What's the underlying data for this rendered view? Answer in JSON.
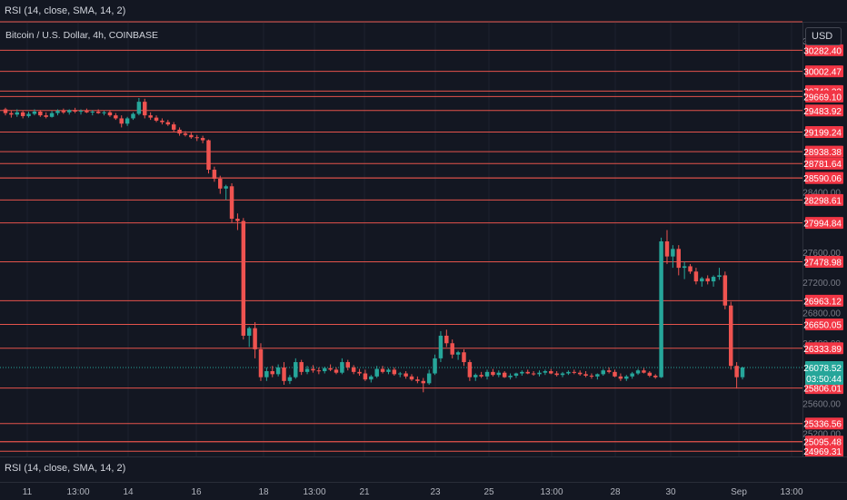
{
  "indicator_top": "RSI (14, close, SMA, 14, 2)",
  "indicator_bottom": "RSI (14, close, SMA, 14, 2)",
  "symbol_title": "Bitcoin / U.S. Dollar, 4h, COINBASE",
  "currency_button": "USD",
  "colors": {
    "background": "#131722",
    "up": "#26a69a",
    "down": "#ef5350",
    "level_line": "#e5534b",
    "axis_text": "#b2b5be"
  },
  "chart_data": {
    "type": "candlestick",
    "title": "Bitcoin / U.S. Dollar, 4h, COINBASE",
    "ylim": [
      24900,
      30660
    ],
    "y_ticks": [
      "30400.00",
      "28400.00",
      "27600.00",
      "27200.00",
      "26800.00",
      "26400.00",
      "25600.00",
      "25200.00"
    ],
    "x_ticks": [
      "11",
      "13:00",
      "14",
      "16",
      "18",
      "13:00",
      "21",
      "23",
      "25",
      "13:00",
      "28",
      "30",
      "Sep",
      "13:00"
    ],
    "level_lines": [
      "30282.40",
      "30002.47",
      "29742.23",
      "29669.10",
      "29483.92",
      "29199.24",
      "28938.38",
      "28781.64",
      "28590.37",
      "28590.06",
      "28298.61",
      "27994.84",
      "27478.98",
      "26963.12",
      "26650.05",
      "26333.89",
      "25806.01",
      "25336.56",
      "25095.72",
      "25095.48",
      "24969.31"
    ],
    "extra_lines": [
      30660
    ],
    "last_price": "26078.52",
    "countdown": "03:50:44",
    "candles": [
      [
        29500,
        29520,
        29420,
        29450
      ],
      [
        29450,
        29480,
        29390,
        29430
      ],
      [
        29430,
        29500,
        29400,
        29460
      ],
      [
        29460,
        29480,
        29380,
        29410
      ],
      [
        29410,
        29470,
        29390,
        29440
      ],
      [
        29440,
        29500,
        29420,
        29470
      ],
      [
        29470,
        29490,
        29400,
        29420
      ],
      [
        29420,
        29460,
        29380,
        29400
      ],
      [
        29400,
        29480,
        29390,
        29450
      ],
      [
        29450,
        29500,
        29420,
        29480
      ],
      [
        29480,
        29510,
        29440,
        29460
      ],
      [
        29460,
        29500,
        29430,
        29490
      ],
      [
        29490,
        29520,
        29450,
        29470
      ],
      [
        29470,
        29500,
        29430,
        29480
      ],
      [
        29480,
        29510,
        29450,
        29460
      ],
      [
        29460,
        29490,
        29420,
        29470
      ],
      [
        29470,
        29500,
        29440,
        29450
      ],
      [
        29450,
        29480,
        29420,
        29460
      ],
      [
        29460,
        29490,
        29400,
        29420
      ],
      [
        29420,
        29450,
        29360,
        29380
      ],
      [
        29380,
        29420,
        29260,
        29310
      ],
      [
        29310,
        29400,
        29280,
        29380
      ],
      [
        29380,
        29460,
        29360,
        29440
      ],
      [
        29440,
        29650,
        29420,
        29600
      ],
      [
        29600,
        29640,
        29380,
        29420
      ],
      [
        29420,
        29460,
        29360,
        29390
      ],
      [
        29390,
        29420,
        29330,
        29350
      ],
      [
        29350,
        29380,
        29300,
        29330
      ],
      [
        29330,
        29360,
        29280,
        29300
      ],
      [
        29300,
        29330,
        29200,
        29230
      ],
      [
        29230,
        29260,
        29150,
        29180
      ],
      [
        29180,
        29210,
        29140,
        29160
      ],
      [
        29160,
        29190,
        29110,
        29130
      ],
      [
        29130,
        29160,
        29080,
        29120
      ],
      [
        29120,
        29150,
        29050,
        29090
      ],
      [
        29090,
        29100,
        28650,
        28700
      ],
      [
        28700,
        28740,
        28540,
        28580
      ],
      [
        28580,
        28620,
        28380,
        28450
      ],
      [
        28450,
        28500,
        28300,
        28480
      ],
      [
        28480,
        28520,
        28000,
        28050
      ],
      [
        28050,
        28120,
        27900,
        28020
      ],
      [
        28020,
        28060,
        26450,
        26500
      ],
      [
        26500,
        26620,
        26350,
        26600
      ],
      [
        26600,
        26680,
        26200,
        26320
      ],
      [
        26320,
        26400,
        25900,
        25950
      ],
      [
        25950,
        26080,
        25900,
        26030
      ],
      [
        26030,
        26100,
        25950,
        25990
      ],
      [
        25990,
        26120,
        25960,
        26080
      ],
      [
        26080,
        26150,
        25850,
        25900
      ],
      [
        25900,
        25980,
        25860,
        25950
      ],
      [
        25950,
        26200,
        25930,
        26150
      ],
      [
        26150,
        26180,
        25980,
        26020
      ],
      [
        26020,
        26100,
        25990,
        26060
      ],
      [
        26060,
        26110,
        26010,
        26040
      ],
      [
        26040,
        26080,
        25990,
        26030
      ],
      [
        26030,
        26090,
        26000,
        26070
      ],
      [
        26070,
        26120,
        26030,
        26050
      ],
      [
        26050,
        26080,
        25990,
        26010
      ],
      [
        26010,
        26200,
        25990,
        26150
      ],
      [
        26150,
        26180,
        26040,
        26080
      ],
      [
        26080,
        26110,
        25990,
        26020
      ],
      [
        26020,
        26060,
        25970,
        26000
      ],
      [
        26000,
        26050,
        25900,
        25920
      ],
      [
        25920,
        25980,
        25880,
        25960
      ],
      [
        25960,
        26100,
        25940,
        26060
      ],
      [
        26060,
        26100,
        26000,
        26020
      ],
      [
        26020,
        26070,
        25990,
        26050
      ],
      [
        26050,
        26080,
        25970,
        25990
      ],
      [
        25990,
        26020,
        25950,
        26000
      ],
      [
        26000,
        26030,
        25930,
        25960
      ],
      [
        25960,
        25990,
        25900,
        25920
      ],
      [
        25920,
        25960,
        25870,
        25900
      ],
      [
        25900,
        25940,
        25750,
        25870
      ],
      [
        25870,
        26050,
        25850,
        26000
      ],
      [
        26000,
        26250,
        25980,
        26200
      ],
      [
        26200,
        26560,
        26150,
        26500
      ],
      [
        26500,
        26580,
        26350,
        26400
      ],
      [
        26400,
        26450,
        26200,
        26250
      ],
      [
        26250,
        26300,
        26180,
        26280
      ],
      [
        26280,
        26320,
        26100,
        26150
      ],
      [
        26150,
        26180,
        25900,
        25950
      ],
      [
        25950,
        26000,
        25900,
        25980
      ],
      [
        25980,
        26020,
        25940,
        25960
      ],
      [
        25960,
        26050,
        25920,
        26020
      ],
      [
        26020,
        26060,
        25960,
        25980
      ],
      [
        25980,
        26040,
        25950,
        26010
      ],
      [
        26010,
        26030,
        25940,
        25950
      ],
      [
        25950,
        26000,
        25920,
        25970
      ],
      [
        25970,
        26010,
        25940,
        26000
      ],
      [
        26000,
        26040,
        25970,
        26020
      ],
      [
        26020,
        26050,
        25990,
        26000
      ],
      [
        26000,
        26030,
        25970,
        25990
      ],
      [
        25990,
        26040,
        25960,
        26010
      ],
      [
        26010,
        26050,
        25980,
        26030
      ],
      [
        26030,
        26060,
        25990,
        26000
      ],
      [
        26000,
        26030,
        25960,
        25980
      ],
      [
        25980,
        26020,
        25950,
        26000
      ],
      [
        26000,
        26040,
        25980,
        26020
      ],
      [
        26020,
        26050,
        25990,
        26010
      ],
      [
        26010,
        26040,
        25970,
        25990
      ],
      [
        25990,
        26030,
        25950,
        25970
      ],
      [
        25970,
        26000,
        25930,
        25960
      ],
      [
        25960,
        26000,
        25920,
        25990
      ],
      [
        25990,
        26060,
        25970,
        26040
      ],
      [
        26040,
        26080,
        26000,
        26020
      ],
      [
        26020,
        26050,
        25950,
        25960
      ],
      [
        25960,
        26000,
        25900,
        25930
      ],
      [
        25930,
        25980,
        25900,
        25960
      ],
      [
        25960,
        26020,
        25930,
        26000
      ],
      [
        26000,
        26060,
        25980,
        26040
      ],
      [
        26040,
        26070,
        26000,
        26010
      ],
      [
        26010,
        26030,
        25950,
        25970
      ],
      [
        25970,
        25990,
        25930,
        25950
      ],
      [
        25950,
        27800,
        25940,
        27750
      ],
      [
        27750,
        27900,
        27450,
        27550
      ],
      [
        27550,
        27700,
        27400,
        27650
      ],
      [
        27650,
        27700,
        27300,
        27400
      ],
      [
        27400,
        27480,
        27250,
        27420
      ],
      [
        27420,
        27450,
        27320,
        27350
      ],
      [
        27350,
        27400,
        27180,
        27220
      ],
      [
        27220,
        27280,
        27150,
        27260
      ],
      [
        27260,
        27300,
        27180,
        27220
      ],
      [
        27220,
        27300,
        27150,
        27280
      ],
      [
        27280,
        27400,
        27240,
        27300
      ],
      [
        27300,
        27350,
        26850,
        26900
      ],
      [
        26900,
        26950,
        26050,
        26100
      ],
      [
        26100,
        26150,
        25800,
        25950
      ],
      [
        25950,
        26090,
        25920,
        26078.52
      ]
    ]
  }
}
